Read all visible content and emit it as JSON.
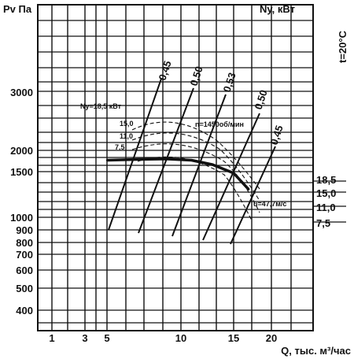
{
  "chart_data": {
    "type": "line",
    "title": "",
    "ylabel_left": "Pv Па",
    "ylabel_right": "Ny, кВт",
    "xlabel": "Q, тыс. м³/час",
    "temperature_label": "t=20°C",
    "x_ticks": [
      "1",
      "3",
      "5",
      "10",
      "15",
      "20"
    ],
    "y_ticks": [
      "3000",
      "2000",
      "1500",
      "1000",
      "900",
      "800",
      "700",
      "600",
      "500",
      "400"
    ],
    "y_ticks_right": [
      "18,5",
      "15,0",
      "11,0",
      "7,5"
    ],
    "power_labels_left": [
      "15,0",
      "11,0",
      "7,5"
    ],
    "efficiency_labels": [
      "0,45",
      "0,50",
      "0,53",
      "0,50",
      "0,45"
    ],
    "annotations": {
      "power_main": "Ny=18,5 кВт",
      "speed": "n=1450об/мин",
      "velocity": "u=47,7м/с"
    },
    "x_range": [
      0,
      25
    ],
    "y_log_scale": true,
    "grid": true,
    "series": [
      {
        "name": "",
        "x": [
          5,
          7,
          9,
          11,
          13,
          15,
          17
        ],
        "values": [
          1750,
          1770,
          1780,
          1750,
          1650,
          1480,
          1280
        ]
      }
    ]
  }
}
